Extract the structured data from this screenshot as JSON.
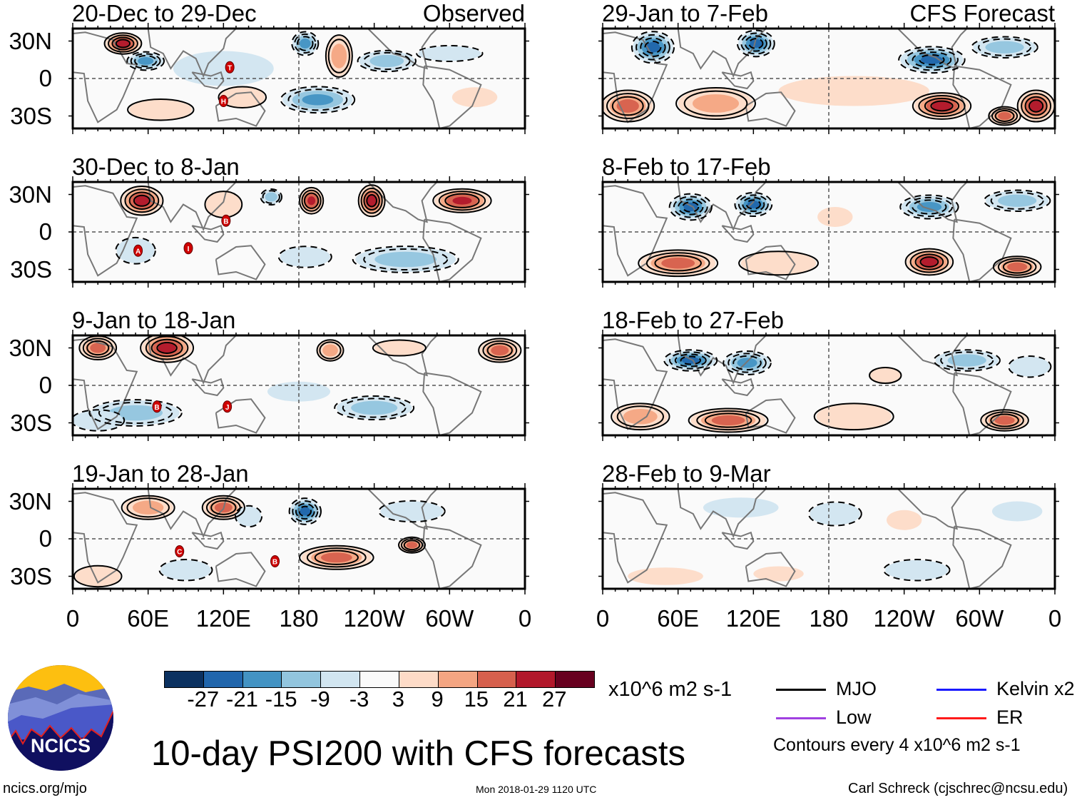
{
  "chart_data": {
    "type": "heatmap",
    "title": "10-day PSI200 with CFS forecasts",
    "variable": "200-hPa streamfunction anomaly",
    "units": "x10^6 m2 s-1",
    "contour_note": "Contours every 4 x10^6 m2 s-1",
    "color_levels": [
      -27,
      -21,
      -15,
      -9,
      -3,
      3,
      9,
      15,
      21,
      27
    ],
    "color_level_labels": [
      "-27",
      "-21",
      "-15",
      "-9",
      "-3",
      "3",
      "9",
      "15",
      "21",
      "27"
    ],
    "colors": [
      "#0b3160",
      "#2166ac",
      "#4393c3",
      "#92c5de",
      "#d1e5f0",
      "#fafafa",
      "#fddbc7",
      "#f4a582",
      "#d6604d",
      "#b2182b",
      "#67001f"
    ],
    "lon_ticks": [
      "0",
      "60E",
      "120E",
      "180",
      "120W",
      "60W",
      "0"
    ],
    "lon_tick_values": [
      0,
      60,
      120,
      180,
      240,
      300,
      360
    ],
    "lat_ticks": [
      "30N",
      "0",
      "30S"
    ],
    "lat_tick_values": [
      30,
      0,
      -30
    ],
    "lat_range": [
      -40,
      40
    ],
    "lon_range": [
      0,
      360
    ],
    "column_labels": [
      "Observed",
      "CFS Forecast"
    ],
    "legend": {
      "entries": [
        {
          "label": "MJO",
          "color": "#000000"
        },
        {
          "label": "Kelvin x2",
          "color": "#1a1aff"
        },
        {
          "label": "Low",
          "color": "#a040e0"
        },
        {
          "label": "ER",
          "color": "#ff1a1a"
        }
      ]
    },
    "panels": [
      {
        "title": "20-Dec to 29-Dec",
        "column": 0,
        "anomalies": [
          [
            40,
            28,
            24,
            14,
            8
          ],
          [
            58,
            14,
            -21,
            14,
            7
          ],
          [
            185,
            28,
            -21,
            10,
            9
          ],
          [
            212,
            18,
            12,
            10,
            16
          ],
          [
            250,
            14,
            -15,
            22,
            8
          ],
          [
            300,
            20,
            -9,
            25,
            6
          ],
          [
            195,
            -17,
            -17,
            28,
            10
          ],
          [
            70,
            -25,
            9,
            25,
            8
          ],
          [
            135,
            -15,
            9,
            18,
            8
          ],
          [
            320,
            -15,
            6,
            18,
            8
          ],
          [
            120,
            8,
            -4,
            40,
            14
          ]
        ],
        "storms": [
          {
            "label": "T",
            "lon": 125,
            "lat": 9
          },
          {
            "label": "H",
            "lon": 120,
            "lat": -18
          }
        ]
      },
      {
        "title": "30-Dec to 8-Jan",
        "column": 0,
        "anomalies": [
          [
            55,
            25,
            27,
            16,
            11
          ],
          [
            190,
            25,
            22,
            9,
            10
          ],
          [
            238,
            25,
            24,
            10,
            12
          ],
          [
            310,
            25,
            22,
            22,
            9
          ],
          [
            158,
            28,
            -15,
            8,
            6
          ],
          [
            265,
            -22,
            -15,
            40,
            10
          ],
          [
            50,
            -15,
            -9,
            15,
            10
          ],
          [
            185,
            -20,
            -9,
            20,
            8
          ],
          [
            120,
            22,
            9,
            14,
            10
          ]
        ],
        "storms": [
          {
            "label": "B",
            "lon": 122,
            "lat": 9
          },
          {
            "label": "A",
            "lon": 52,
            "lat": -15
          },
          {
            "label": "I",
            "lon": 92,
            "lat": -13
          }
        ]
      },
      {
        "title": "9-Jan to 18-Jan",
        "column": 0,
        "anomalies": [
          [
            20,
            30,
            21,
            14,
            9
          ],
          [
            75,
            30,
            27,
            20,
            11
          ],
          [
            205,
            28,
            12,
            10,
            8
          ],
          [
            340,
            28,
            21,
            16,
            9
          ],
          [
            260,
            30,
            9,
            20,
            6
          ],
          [
            50,
            -22,
            -15,
            35,
            10
          ],
          [
            240,
            -18,
            -15,
            30,
            9
          ],
          [
            180,
            -5,
            -4,
            25,
            8
          ],
          [
            20,
            -28,
            -9,
            20,
            8
          ]
        ],
        "storms": [
          {
            "label": "B",
            "lon": 67,
            "lat": -17
          },
          {
            "label": "J",
            "lon": 123,
            "lat": -17
          }
        ]
      },
      {
        "title": "19-Jan to 28-Jan",
        "column": 0,
        "anomalies": [
          [
            60,
            25,
            15,
            20,
            9
          ],
          [
            120,
            25,
            18,
            16,
            9
          ],
          [
            185,
            22,
            -27,
            12,
            10
          ],
          [
            140,
            18,
            -9,
            10,
            8
          ],
          [
            270,
            22,
            -9,
            25,
            8
          ],
          [
            210,
            -15,
            21,
            28,
            9
          ],
          [
            270,
            -5,
            21,
            10,
            6
          ],
          [
            20,
            -30,
            9,
            18,
            8
          ],
          [
            90,
            -25,
            -9,
            20,
            8
          ]
        ],
        "storms": [
          {
            "label": "C",
            "lon": 85,
            "lat": -10
          },
          {
            "label": "B",
            "lon": 161,
            "lat": -18
          }
        ]
      },
      {
        "title": "29-Jan to 7-Feb",
        "column": 1,
        "anomalies": [
          [
            40,
            25,
            -27,
            16,
            12
          ],
          [
            122,
            28,
            -24,
            14,
            10
          ],
          [
            262,
            15,
            -27,
            25,
            10
          ],
          [
            320,
            25,
            -15,
            25,
            8
          ],
          [
            200,
            -10,
            6,
            60,
            12
          ],
          [
            270,
            -22,
            27,
            22,
            10
          ],
          [
            20,
            -22,
            21,
            20,
            12
          ],
          [
            345,
            -22,
            24,
            14,
            12
          ],
          [
            320,
            -30,
            21,
            12,
            7
          ],
          [
            90,
            -20,
            12,
            30,
            12
          ]
        ],
        "storms": []
      },
      {
        "title": "8-Feb to 17-Feb",
        "column": 1,
        "anomalies": [
          [
            70,
            20,
            -27,
            16,
            10
          ],
          [
            120,
            22,
            -27,
            14,
            9
          ],
          [
            260,
            20,
            -21,
            22,
            9
          ],
          [
            330,
            25,
            -15,
            25,
            8
          ],
          [
            185,
            12,
            3,
            14,
            8
          ],
          [
            60,
            -25,
            21,
            30,
            10
          ],
          [
            260,
            -24,
            27,
            18,
            10
          ],
          [
            330,
            -28,
            21,
            18,
            8
          ],
          [
            140,
            -25,
            9,
            30,
            9
          ]
        ],
        "storms": []
      },
      {
        "title": "18-Feb to 27-Feb",
        "column": 1,
        "anomalies": [
          [
            70,
            20,
            -27,
            20,
            8
          ],
          [
            115,
            18,
            -21,
            18,
            9
          ],
          [
            290,
            20,
            -15,
            25,
            8
          ],
          [
            340,
            15,
            -9,
            16,
            8
          ],
          [
            225,
            8,
            9,
            12,
            6
          ],
          [
            100,
            -28,
            21,
            30,
            9
          ],
          [
            200,
            -25,
            9,
            30,
            10
          ],
          [
            320,
            -28,
            21,
            18,
            8
          ],
          [
            30,
            -25,
            15,
            22,
            10
          ]
        ],
        "storms": []
      },
      {
        "title": "28-Feb to 9-Mar",
        "column": 1,
        "anomalies": [
          [
            185,
            20,
            -9,
            20,
            9
          ],
          [
            240,
            15,
            3,
            14,
            8
          ],
          [
            110,
            25,
            -4,
            30,
            8
          ],
          [
            250,
            -25,
            -9,
            25,
            8
          ],
          [
            330,
            22,
            -3,
            20,
            8
          ],
          [
            50,
            -30,
            3,
            30,
            7
          ],
          [
            140,
            -28,
            3,
            20,
            6
          ]
        ],
        "storms": []
      }
    ]
  },
  "footer": {
    "logo_text": "NCICS",
    "website": "ncics.org/mjo",
    "timestamp": "Mon 2018-01-29 1120 UTC",
    "author": "Carl Schreck (cjschrec@ncsu.edu)"
  }
}
